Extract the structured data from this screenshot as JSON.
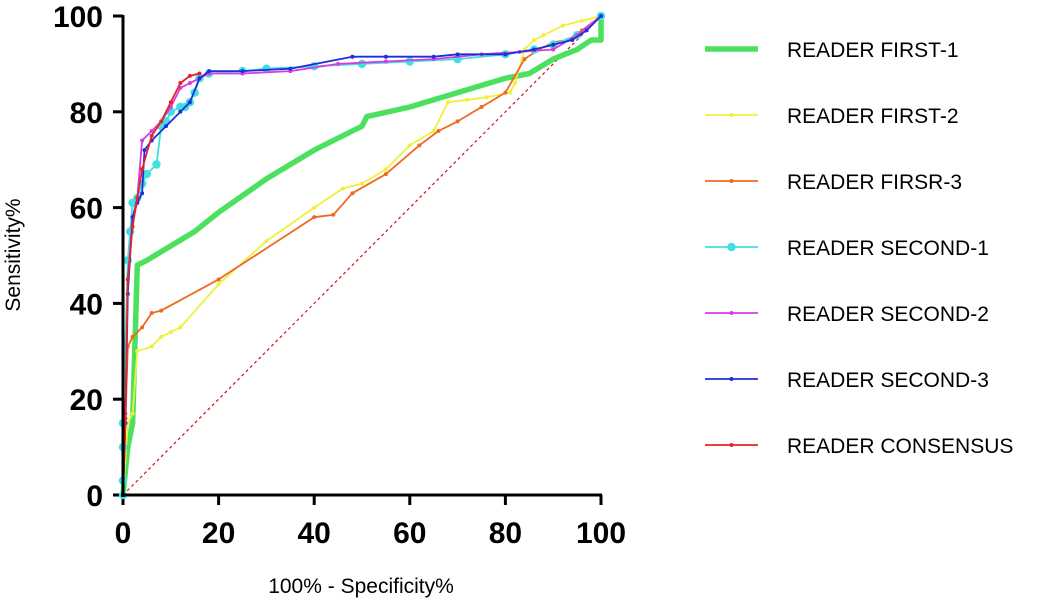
{
  "chart_data": {
    "type": "line",
    "title": "",
    "xlabel": "100% - Specificity%",
    "ylabel": "Sensitivity%",
    "xlim": [
      0,
      100
    ],
    "ylim": [
      0,
      100
    ],
    "xticks": [
      "0",
      "20",
      "40",
      "60",
      "80",
      "100"
    ],
    "yticks": [
      "0",
      "20",
      "40",
      "60",
      "80",
      "100"
    ],
    "grid": false,
    "legend_position": "right",
    "reference_line": {
      "style": "dashed",
      "color": "#cc1111",
      "from": [
        0,
        0
      ],
      "to": [
        100,
        100
      ]
    },
    "series": [
      {
        "name": "READER FIRST-1",
        "color": "#4be15f",
        "marker": "none",
        "width": "thick",
        "points": [
          [
            0,
            0
          ],
          [
            1,
            10
          ],
          [
            2,
            15
          ],
          [
            3,
            48
          ],
          [
            5,
            49
          ],
          [
            10,
            52
          ],
          [
            15,
            55
          ],
          [
            20,
            59
          ],
          [
            30,
            66
          ],
          [
            40,
            72
          ],
          [
            50,
            77
          ],
          [
            51,
            79
          ],
          [
            60,
            81
          ],
          [
            70,
            84
          ],
          [
            80,
            87
          ],
          [
            85,
            88
          ],
          [
            90,
            91
          ],
          [
            95,
            93
          ],
          [
            98,
            95
          ],
          [
            100,
            95
          ],
          [
            100,
            100
          ]
        ]
      },
      {
        "name": "READER FIRST-2",
        "color": "#f0f03a",
        "marker": "dot",
        "width": "normal",
        "points": [
          [
            0,
            0
          ],
          [
            1,
            15
          ],
          [
            2,
            17
          ],
          [
            3,
            30
          ],
          [
            6,
            31
          ],
          [
            8,
            33
          ],
          [
            10,
            34
          ],
          [
            12,
            35
          ],
          [
            20,
            44
          ],
          [
            30,
            53
          ],
          [
            40,
            60
          ],
          [
            46,
            64
          ],
          [
            50,
            65
          ],
          [
            55,
            68
          ],
          [
            60,
            73
          ],
          [
            65,
            76
          ],
          [
            68,
            82
          ],
          [
            72,
            82.5
          ],
          [
            76,
            83
          ],
          [
            81,
            84
          ],
          [
            82,
            86
          ],
          [
            84,
            93
          ],
          [
            86,
            95
          ],
          [
            88,
            96
          ],
          [
            92,
            98
          ],
          [
            96,
            99
          ],
          [
            100,
            100
          ]
        ]
      },
      {
        "name": "READER FIRSR-3",
        "color": "#ee6a22",
        "marker": "dot",
        "width": "normal",
        "points": [
          [
            0,
            0
          ],
          [
            0.5,
            15
          ],
          [
            1,
            31
          ],
          [
            2,
            33
          ],
          [
            4,
            35
          ],
          [
            6,
            38
          ],
          [
            8,
            38.5
          ],
          [
            20,
            45
          ],
          [
            40,
            58
          ],
          [
            44,
            58.5
          ],
          [
            48,
            63
          ],
          [
            55,
            67
          ],
          [
            62,
            73
          ],
          [
            66,
            76
          ],
          [
            70,
            78
          ],
          [
            75,
            81
          ],
          [
            80,
            84
          ],
          [
            84,
            91
          ],
          [
            87,
            93
          ],
          [
            90,
            94.5
          ],
          [
            93,
            95
          ],
          [
            96,
            97
          ],
          [
            100,
            100
          ]
        ]
      },
      {
        "name": "READER SECOND-1",
        "color": "#3fdfe2",
        "marker": "circle",
        "width": "normal",
        "points": [
          [
            0,
            0
          ],
          [
            0,
            3
          ],
          [
            0,
            10
          ],
          [
            0,
            15
          ],
          [
            1,
            49
          ],
          [
            1.5,
            55
          ],
          [
            2,
            61
          ],
          [
            3,
            62
          ],
          [
            4,
            65
          ],
          [
            5,
            67
          ],
          [
            7,
            69
          ],
          [
            8,
            77
          ],
          [
            9,
            78
          ],
          [
            10,
            80
          ],
          [
            12,
            81
          ],
          [
            13,
            81
          ],
          [
            14,
            82
          ],
          [
            15,
            84
          ],
          [
            16,
            87
          ],
          [
            18,
            88
          ],
          [
            25,
            88.5
          ],
          [
            30,
            89
          ],
          [
            40,
            89.5
          ],
          [
            50,
            90
          ],
          [
            60,
            90.5
          ],
          [
            70,
            91
          ],
          [
            80,
            92
          ],
          [
            86,
            93
          ],
          [
            90,
            94
          ],
          [
            95,
            96
          ],
          [
            100,
            100
          ]
        ]
      },
      {
        "name": "READER SECOND-2",
        "color": "#d83be0",
        "marker": "dot",
        "width": "normal",
        "points": [
          [
            0,
            0
          ],
          [
            0.5,
            17
          ],
          [
            1,
            45
          ],
          [
            2,
            58
          ],
          [
            3,
            62
          ],
          [
            4,
            74
          ],
          [
            6,
            76
          ],
          [
            8,
            78
          ],
          [
            10,
            81
          ],
          [
            12,
            85
          ],
          [
            14,
            86
          ],
          [
            16,
            87
          ],
          [
            18,
            88
          ],
          [
            25,
            88
          ],
          [
            35,
            88.5
          ],
          [
            45,
            90
          ],
          [
            55,
            90.5
          ],
          [
            65,
            91
          ],
          [
            75,
            92
          ],
          [
            83,
            92.5
          ],
          [
            90,
            93
          ],
          [
            95,
            96
          ],
          [
            100,
            100
          ]
        ]
      },
      {
        "name": "READER SECOND-3",
        "color": "#1f2fd8",
        "marker": "dot",
        "width": "normal",
        "points": [
          [
            0,
            0
          ],
          [
            0.5,
            15
          ],
          [
            1,
            42
          ],
          [
            2,
            58
          ],
          [
            3,
            61
          ],
          [
            4,
            63
          ],
          [
            4.5,
            72
          ],
          [
            6,
            74
          ],
          [
            9,
            77
          ],
          [
            12,
            80
          ],
          [
            14,
            82
          ],
          [
            16,
            87
          ],
          [
            18,
            88.5
          ],
          [
            25,
            88.5
          ],
          [
            35,
            89
          ],
          [
            48,
            91.5
          ],
          [
            55,
            91.5
          ],
          [
            65,
            91.5
          ],
          [
            70,
            92
          ],
          [
            80,
            92
          ],
          [
            86,
            93
          ],
          [
            90,
            94
          ],
          [
            94,
            95
          ],
          [
            97,
            97
          ],
          [
            100,
            100
          ]
        ]
      },
      {
        "name": "READER CONSENSUS",
        "color": "#e42525",
        "marker": "dot",
        "width": "normal",
        "points": [
          [
            0,
            0
          ],
          [
            0.5,
            16
          ],
          [
            1,
            45
          ],
          [
            2,
            56
          ],
          [
            3,
            62
          ],
          [
            4,
            68
          ],
          [
            6,
            75
          ],
          [
            8,
            78
          ],
          [
            10,
            82
          ],
          [
            12,
            86
          ],
          [
            14,
            87.5
          ],
          [
            16,
            88
          ]
        ]
      }
    ]
  }
}
